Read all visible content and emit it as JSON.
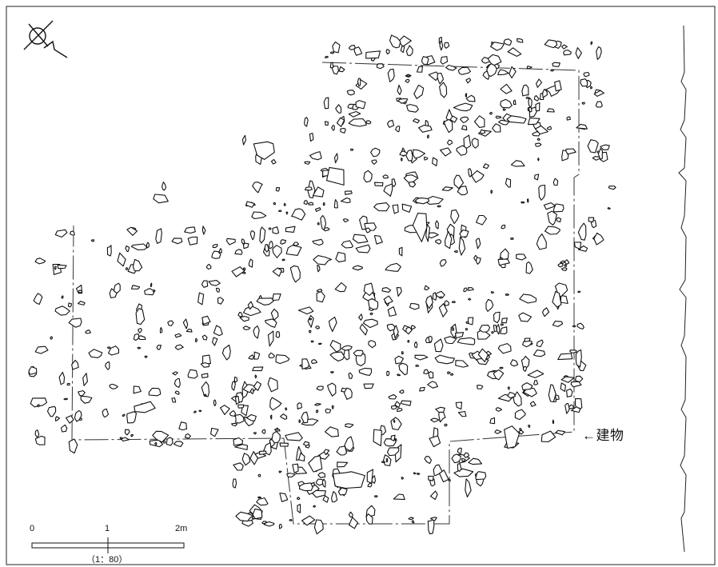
{
  "building_label": "←建物",
  "scale_bar": {
    "ticks": [
      "0",
      "1",
      "2m"
    ],
    "ratio": "（1：80）"
  },
  "north_arrow": {
    "icon": "north-arrow-icon"
  },
  "colors": {
    "ink": "#111111",
    "paper": "#ffffff"
  }
}
